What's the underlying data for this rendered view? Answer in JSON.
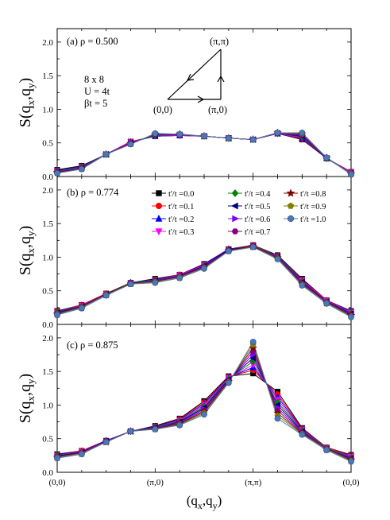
{
  "chart_data": [
    {
      "type": "line",
      "panel_label": "(a) ρ = 0.500",
      "annotations": [
        "8 x 8",
        "U = 4t",
        "βt = 5"
      ],
      "path_labels": [
        "(π,π)",
        "(0,0)",
        "(π,0)"
      ],
      "xlabel": "",
      "ylabel": "S(qx,qy)",
      "ylim": [
        0,
        2.2
      ],
      "yticks": [
        "0.0",
        "0.5",
        "1.0",
        "1.5",
        "2.0"
      ],
      "xticks": [],
      "x": [
        0,
        1,
        2,
        3,
        4,
        5,
        6,
        7,
        8,
        9,
        10,
        11,
        12
      ],
      "series": [
        {
          "name": "t'/t =0.0",
          "values": [
            0.1,
            0.16,
            0.33,
            0.52,
            0.6,
            0.61,
            0.6,
            0.57,
            0.55,
            0.64,
            0.55,
            0.27,
            0.07
          ]
        },
        {
          "name": "t'/t =0.1",
          "values": [
            0.09,
            0.15,
            0.33,
            0.52,
            0.6,
            0.61,
            0.6,
            0.57,
            0.55,
            0.64,
            0.56,
            0.27,
            0.07
          ]
        },
        {
          "name": "t'/t =0.2",
          "values": [
            0.09,
            0.15,
            0.33,
            0.51,
            0.6,
            0.61,
            0.6,
            0.57,
            0.55,
            0.64,
            0.57,
            0.27,
            0.06
          ]
        },
        {
          "name": "t'/t =0.3",
          "values": [
            0.08,
            0.14,
            0.33,
            0.51,
            0.61,
            0.61,
            0.6,
            0.57,
            0.55,
            0.64,
            0.58,
            0.27,
            0.06
          ]
        },
        {
          "name": "t'/t =0.4",
          "values": [
            0.08,
            0.14,
            0.33,
            0.5,
            0.61,
            0.62,
            0.6,
            0.57,
            0.55,
            0.64,
            0.59,
            0.27,
            0.05
          ]
        },
        {
          "name": "t'/t =0.5",
          "values": [
            0.07,
            0.13,
            0.33,
            0.5,
            0.62,
            0.62,
            0.6,
            0.57,
            0.55,
            0.64,
            0.6,
            0.27,
            0.05
          ]
        },
        {
          "name": "t'/t =0.6",
          "values": [
            0.07,
            0.13,
            0.33,
            0.5,
            0.62,
            0.62,
            0.6,
            0.57,
            0.55,
            0.64,
            0.61,
            0.28,
            0.05
          ]
        },
        {
          "name": "t'/t =0.7",
          "values": [
            0.06,
            0.12,
            0.33,
            0.49,
            0.63,
            0.62,
            0.6,
            0.57,
            0.55,
            0.65,
            0.62,
            0.28,
            0.04
          ]
        },
        {
          "name": "t'/t =0.8",
          "values": [
            0.06,
            0.12,
            0.33,
            0.49,
            0.63,
            0.63,
            0.6,
            0.57,
            0.55,
            0.65,
            0.63,
            0.28,
            0.04
          ]
        },
        {
          "name": "t'/t =0.9",
          "values": [
            0.05,
            0.11,
            0.33,
            0.48,
            0.64,
            0.63,
            0.6,
            0.57,
            0.55,
            0.65,
            0.64,
            0.28,
            0.04
          ]
        },
        {
          "name": "t'/t =1.0",
          "values": [
            0.05,
            0.11,
            0.33,
            0.48,
            0.64,
            0.63,
            0.6,
            0.57,
            0.55,
            0.65,
            0.65,
            0.28,
            0.03
          ]
        }
      ]
    },
    {
      "type": "line",
      "panel_label": "(b) ρ = 0.774",
      "xlabel": "",
      "ylabel": "S(qx,qy)",
      "ylim": [
        0,
        2.2
      ],
      "yticks": [
        "0.0",
        "0.5",
        "1.0",
        "1.5",
        "2.0"
      ],
      "xticks": [],
      "legend": "top-right",
      "x": [
        0,
        1,
        2,
        3,
        4,
        5,
        6,
        7,
        8,
        9,
        10,
        11,
        12
      ],
      "series": [
        {
          "name": "t'/t =0.0",
          "values": [
            0.2,
            0.29,
            0.46,
            0.62,
            0.68,
            0.74,
            0.9,
            1.12,
            1.18,
            1.03,
            0.68,
            0.36,
            0.2
          ]
        },
        {
          "name": "t'/t =0.1",
          "values": [
            0.19,
            0.29,
            0.46,
            0.62,
            0.67,
            0.74,
            0.89,
            1.12,
            1.18,
            1.02,
            0.67,
            0.36,
            0.19
          ]
        },
        {
          "name": "t'/t =0.2",
          "values": [
            0.19,
            0.28,
            0.45,
            0.62,
            0.67,
            0.73,
            0.89,
            1.12,
            1.17,
            1.02,
            0.66,
            0.35,
            0.19
          ]
        },
        {
          "name": "t'/t =0.3",
          "values": [
            0.18,
            0.28,
            0.45,
            0.62,
            0.66,
            0.73,
            0.88,
            1.11,
            1.17,
            1.01,
            0.65,
            0.35,
            0.18
          ]
        },
        {
          "name": "t'/t =0.4",
          "values": [
            0.18,
            0.27,
            0.45,
            0.62,
            0.66,
            0.72,
            0.87,
            1.11,
            1.17,
            1.01,
            0.64,
            0.34,
            0.17
          ]
        },
        {
          "name": "t'/t =0.5",
          "values": [
            0.17,
            0.27,
            0.45,
            0.61,
            0.65,
            0.72,
            0.87,
            1.11,
            1.16,
            1.0,
            0.63,
            0.34,
            0.16
          ]
        },
        {
          "name": "t'/t =0.6",
          "values": [
            0.16,
            0.26,
            0.44,
            0.61,
            0.65,
            0.71,
            0.86,
            1.1,
            1.16,
            1.0,
            0.62,
            0.33,
            0.15
          ]
        },
        {
          "name": "t'/t =0.7",
          "values": [
            0.16,
            0.26,
            0.44,
            0.61,
            0.64,
            0.71,
            0.85,
            1.1,
            1.16,
            0.99,
            0.61,
            0.33,
            0.14
          ]
        },
        {
          "name": "t'/t =0.8",
          "values": [
            0.15,
            0.25,
            0.44,
            0.61,
            0.64,
            0.7,
            0.85,
            1.1,
            1.16,
            0.99,
            0.6,
            0.32,
            0.13
          ]
        },
        {
          "name": "t'/t =0.9",
          "values": [
            0.15,
            0.25,
            0.44,
            0.6,
            0.63,
            0.7,
            0.84,
            1.09,
            1.15,
            0.98,
            0.59,
            0.32,
            0.12
          ]
        },
        {
          "name": "t'/t =1.0",
          "values": [
            0.14,
            0.24,
            0.43,
            0.6,
            0.62,
            0.69,
            0.83,
            1.09,
            1.15,
            0.97,
            0.58,
            0.31,
            0.11
          ]
        }
      ]
    },
    {
      "type": "line",
      "panel_label": "(c) ρ = 0.875",
      "xlabel": "(qx,qy)",
      "ylabel": "S(qx,qy)",
      "ylim": [
        0,
        2.2
      ],
      "yticks": [
        "0.0",
        "0.5",
        "1.0",
        "1.5",
        "2.0"
      ],
      "xticks": [
        "(0,0)",
        "(π,0)",
        "(π,π)",
        "(0,0)"
      ],
      "x": [
        0,
        1,
        2,
        3,
        4,
        5,
        6,
        7,
        8,
        9,
        10,
        11,
        12
      ],
      "series": [
        {
          "name": "t'/t =0.0",
          "values": [
            0.27,
            0.32,
            0.47,
            0.61,
            0.69,
            0.8,
            1.06,
            1.43,
            1.47,
            1.2,
            0.66,
            0.37,
            0.26
          ]
        },
        {
          "name": "t'/t =0.1",
          "values": [
            0.26,
            0.32,
            0.47,
            0.61,
            0.68,
            0.79,
            1.04,
            1.42,
            1.52,
            1.16,
            0.65,
            0.37,
            0.25
          ]
        },
        {
          "name": "t'/t =0.2",
          "values": [
            0.26,
            0.31,
            0.47,
            0.61,
            0.68,
            0.78,
            1.02,
            1.41,
            1.56,
            1.12,
            0.64,
            0.36,
            0.24
          ]
        },
        {
          "name": "t'/t =0.3",
          "values": [
            0.25,
            0.31,
            0.46,
            0.61,
            0.67,
            0.77,
            1.0,
            1.4,
            1.6,
            1.08,
            0.63,
            0.36,
            0.23
          ]
        },
        {
          "name": "t'/t =0.4",
          "values": [
            0.25,
            0.3,
            0.46,
            0.61,
            0.67,
            0.76,
            0.98,
            1.39,
            1.65,
            1.04,
            0.62,
            0.36,
            0.22
          ]
        },
        {
          "name": "t'/t =0.5",
          "values": [
            0.24,
            0.3,
            0.46,
            0.61,
            0.66,
            0.75,
            0.96,
            1.38,
            1.7,
            1.0,
            0.61,
            0.35,
            0.21
          ]
        },
        {
          "name": "t'/t =0.6",
          "values": [
            0.23,
            0.29,
            0.46,
            0.61,
            0.66,
            0.74,
            0.94,
            1.37,
            1.75,
            0.96,
            0.6,
            0.35,
            0.2
          ]
        },
        {
          "name": "t'/t =0.7",
          "values": [
            0.23,
            0.29,
            0.46,
            0.61,
            0.65,
            0.73,
            0.92,
            1.36,
            1.8,
            0.92,
            0.59,
            0.35,
            0.19
          ]
        },
        {
          "name": "t'/t =0.8",
          "values": [
            0.22,
            0.28,
            0.45,
            0.61,
            0.65,
            0.72,
            0.9,
            1.35,
            1.85,
            0.88,
            0.58,
            0.34,
            0.18
          ]
        },
        {
          "name": "t'/t =0.9",
          "values": [
            0.22,
            0.28,
            0.45,
            0.61,
            0.64,
            0.71,
            0.88,
            1.34,
            1.9,
            0.84,
            0.57,
            0.34,
            0.17
          ]
        },
        {
          "name": "t'/t =1.0",
          "values": [
            0.21,
            0.27,
            0.45,
            0.61,
            0.64,
            0.7,
            0.86,
            1.33,
            1.94,
            0.8,
            0.56,
            0.33,
            0.16
          ]
        }
      ]
    }
  ],
  "styles": [
    {
      "color": "#000000",
      "marker": "square"
    },
    {
      "color": "#ff0000",
      "marker": "circle"
    },
    {
      "color": "#0000ff",
      "marker": "triangle-up"
    },
    {
      "color": "#ff00ff",
      "marker": "triangle-down"
    },
    {
      "color": "#008000",
      "marker": "diamond"
    },
    {
      "color": "#000080",
      "marker": "triangle-left"
    },
    {
      "color": "#8000ff",
      "marker": "triangle-right"
    },
    {
      "color": "#800080",
      "marker": "hexagon"
    },
    {
      "color": "#800000",
      "marker": "star"
    },
    {
      "color": "#808000",
      "marker": "pentagon"
    },
    {
      "color": "#4a7ab5",
      "marker": "sphere"
    }
  ]
}
